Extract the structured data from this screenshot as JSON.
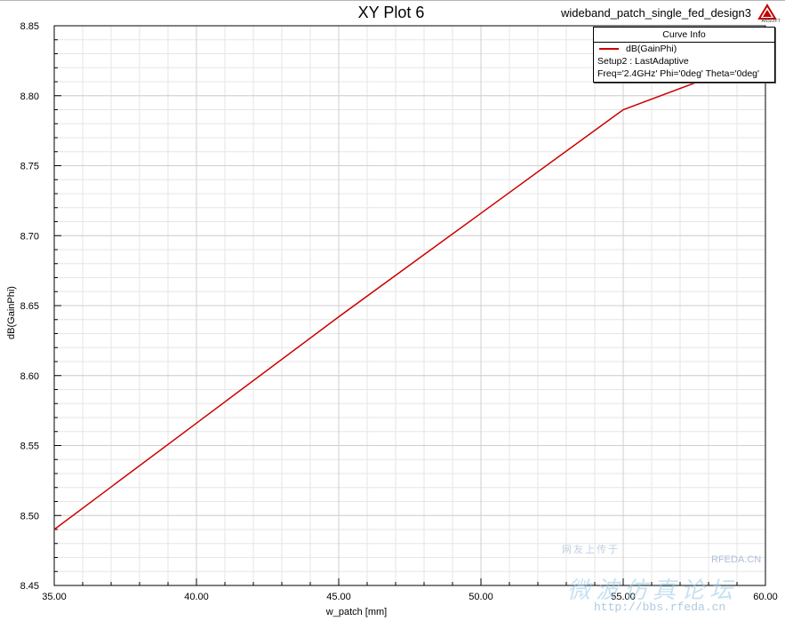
{
  "header": {
    "title": "XY Plot 6",
    "design_name": "wideband_patch_single_fed_design3",
    "logo_text": "ANSOFT"
  },
  "legend": {
    "title": "Curve Info",
    "curve_name": "dB(GainPhi)",
    "setup": "Setup2 : LastAdaptive",
    "params": "Freq='2.4GHz' Phi='0deg' Theta='0deg'"
  },
  "watermark": {
    "small_text": "网友上传于",
    "site_text": "RFEDA.CN",
    "cn_text": "微波仿真论坛",
    "url": "http://bbs.rfeda.cn"
  },
  "colors": {
    "curve": "#cc0000",
    "grid": "#dcdcdc",
    "axis": "#000000"
  },
  "chart_data": {
    "type": "line",
    "xlabel": "w_patch [mm]",
    "ylabel": "dB(GainPhi)",
    "xlim": [
      35.0,
      60.0
    ],
    "ylim": [
      8.45,
      8.85
    ],
    "x_ticks": [
      "35.00",
      "40.00",
      "45.00",
      "50.00",
      "55.00",
      "60.00"
    ],
    "y_ticks": [
      "8.45",
      "8.50",
      "8.55",
      "8.60",
      "8.65",
      "8.70",
      "8.75",
      "8.80",
      "8.85"
    ],
    "grid": true,
    "legend_position": "top-right",
    "series": [
      {
        "name": "dB(GainPhi)",
        "color": "#cc0000",
        "x": [
          35.0,
          40.0,
          45.0,
          50.0,
          55.0,
          60.0
        ],
        "y": [
          8.49,
          8.566,
          8.642,
          8.716,
          8.79,
          8.828
        ]
      }
    ]
  }
}
